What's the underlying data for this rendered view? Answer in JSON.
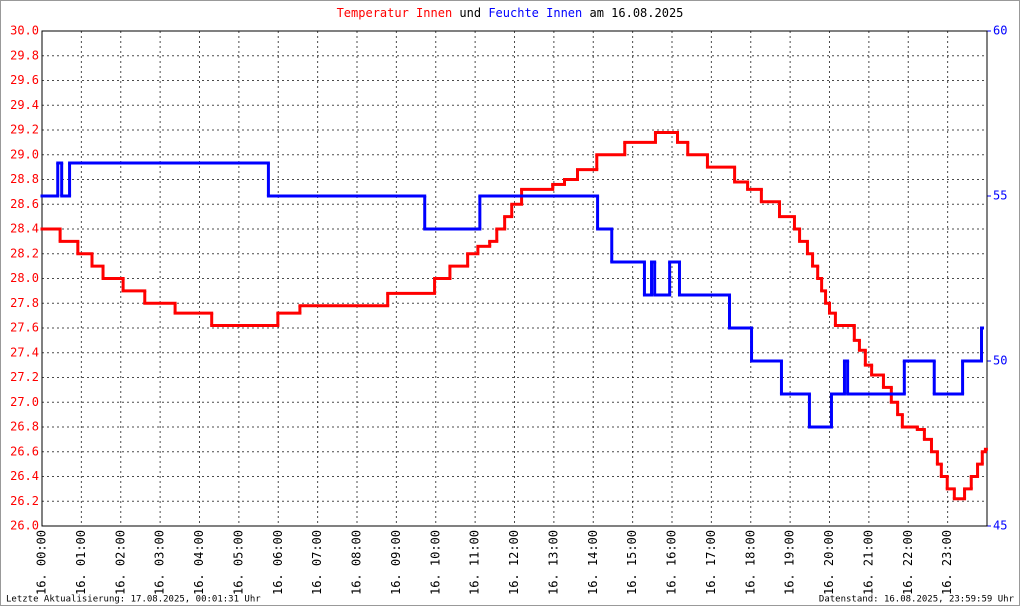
{
  "chart_data": {
    "type": "line",
    "title_join": "und",
    "title_date": "am 16.08.2025",
    "footer_left": "Letzte Aktualisierung: 17.08.2025, 00:01:31 Uhr",
    "footer_right": "Datenstand: 16.08.2025, 23:59:59 Uhr",
    "xlim": [
      0,
      24
    ],
    "xticks": [
      {
        "value": 0,
        "label": "16. 00:00"
      },
      {
        "value": 1,
        "label": "16. 01:00"
      },
      {
        "value": 2,
        "label": "16. 02:00"
      },
      {
        "value": 3,
        "label": "16. 03:00"
      },
      {
        "value": 4,
        "label": "16. 04:00"
      },
      {
        "value": 5,
        "label": "16. 05:00"
      },
      {
        "value": 6,
        "label": "16. 06:00"
      },
      {
        "value": 7,
        "label": "16. 07:00"
      },
      {
        "value": 8,
        "label": "16. 08:00"
      },
      {
        "value": 9,
        "label": "16. 09:00"
      },
      {
        "value": 10,
        "label": "16. 10:00"
      },
      {
        "value": 11,
        "label": "16. 11:00"
      },
      {
        "value": 12,
        "label": "16. 12:00"
      },
      {
        "value": 13,
        "label": "16. 13:00"
      },
      {
        "value": 14,
        "label": "16. 14:00"
      },
      {
        "value": 15,
        "label": "16. 15:00"
      },
      {
        "value": 16,
        "label": "16. 16:00"
      },
      {
        "value": 17,
        "label": "16. 17:00"
      },
      {
        "value": 18,
        "label": "16. 18:00"
      },
      {
        "value": 19,
        "label": "16. 19:00"
      },
      {
        "value": 20,
        "label": "16. 20:00"
      },
      {
        "value": 21,
        "label": "16. 21:00"
      },
      {
        "value": 22,
        "label": "16. 22:00"
      },
      {
        "value": 23,
        "label": "16. 23:00"
      }
    ],
    "ylim": [
      26.0,
      30.0
    ],
    "yticks": [
      {
        "value": 26.0,
        "label": "26.0"
      },
      {
        "value": 26.2,
        "label": "26.2"
      },
      {
        "value": 26.4,
        "label": "26.4"
      },
      {
        "value": 26.6,
        "label": "26.6"
      },
      {
        "value": 26.8,
        "label": "26.8"
      },
      {
        "value": 27.0,
        "label": "27.0"
      },
      {
        "value": 27.2,
        "label": "27.2"
      },
      {
        "value": 27.4,
        "label": "27.4"
      },
      {
        "value": 27.6,
        "label": "27.6"
      },
      {
        "value": 27.8,
        "label": "27.8"
      },
      {
        "value": 28.0,
        "label": "28.0"
      },
      {
        "value": 28.2,
        "label": "28.2"
      },
      {
        "value": 28.4,
        "label": "28.4"
      },
      {
        "value": 28.6,
        "label": "28.6"
      },
      {
        "value": 28.8,
        "label": "28.8"
      },
      {
        "value": 29.0,
        "label": "29.0"
      },
      {
        "value": 29.2,
        "label": "29.2"
      },
      {
        "value": 29.4,
        "label": "29.4"
      },
      {
        "value": 29.6,
        "label": "29.6"
      },
      {
        "value": 29.8,
        "label": "29.8"
      },
      {
        "value": 30.0,
        "label": "30.0"
      }
    ],
    "y2lim": [
      45,
      60
    ],
    "y2ticks": [
      45,
      50,
      55,
      60
    ],
    "grid": true,
    "series": [
      {
        "name": "Temperatur Innen",
        "color": "#ff0000",
        "axis": "y",
        "x": [
          0,
          0.46,
          0.91,
          1.27,
          1.55,
          2.06,
          2.61,
          3.38,
          4.31,
          5.99,
          6.55,
          8.78,
          9.97,
          10.36,
          10.81,
          11.07,
          11.37,
          11.55,
          11.75,
          11.93,
          12.18,
          12.97,
          13.27,
          13.6,
          14.09,
          14.8,
          15.58,
          16.14,
          16.4,
          16.9,
          17.59,
          17.92,
          18.27,
          18.73,
          19.11,
          19.24,
          19.44,
          19.57,
          19.7,
          19.8,
          19.9,
          20.0,
          20.15,
          20.63,
          20.76,
          20.91,
          21.07,
          21.37,
          21.57,
          21.73,
          21.85,
          22.23,
          22.41,
          22.59,
          22.74,
          22.84,
          22.99,
          23.17,
          23.43,
          23.6,
          23.76,
          23.88,
          23.96
        ],
        "values": [
          28.4,
          28.3,
          28.2,
          28.1,
          28.0,
          27.9,
          27.8,
          27.72,
          27.62,
          27.72,
          27.78,
          27.88,
          28.0,
          28.1,
          28.2,
          28.26,
          28.3,
          28.4,
          28.5,
          28.6,
          28.72,
          28.76,
          28.8,
          28.88,
          29.0,
          29.1,
          29.18,
          29.1,
          29.0,
          28.9,
          28.78,
          28.72,
          28.62,
          28.5,
          28.4,
          28.3,
          28.2,
          28.1,
          28.0,
          27.9,
          27.8,
          27.72,
          27.62,
          27.5,
          27.42,
          27.3,
          27.22,
          27.12,
          27.0,
          26.9,
          26.8,
          26.78,
          26.7,
          26.6,
          26.5,
          26.4,
          26.3,
          26.22,
          26.3,
          26.4,
          26.5,
          26.6,
          26.62
        ]
      },
      {
        "name": "Feuchte Innen",
        "color": "#0000ff",
        "axis": "y2",
        "x": [
          0,
          0.4,
          0.5,
          0.7,
          5.75,
          9.72,
          11.12,
          14.11,
          14.47,
          15.3,
          15.48,
          15.56,
          15.94,
          16.19,
          17.46,
          18.02,
          18.78,
          19.49,
          20.05,
          20.38,
          20.46,
          21.9,
          22.66,
          23.38,
          23.86
        ],
        "values": [
          55.0,
          56.0,
          55.0,
          56.0,
          55.0,
          54.0,
          55.0,
          54.0,
          53.0,
          52.0,
          53.0,
          52.0,
          53.0,
          52.0,
          51.0,
          50.0,
          49.0,
          48.0,
          49.0,
          50.0,
          49.0,
          50.0,
          49.0,
          50.0,
          51.0
        ]
      }
    ]
  }
}
